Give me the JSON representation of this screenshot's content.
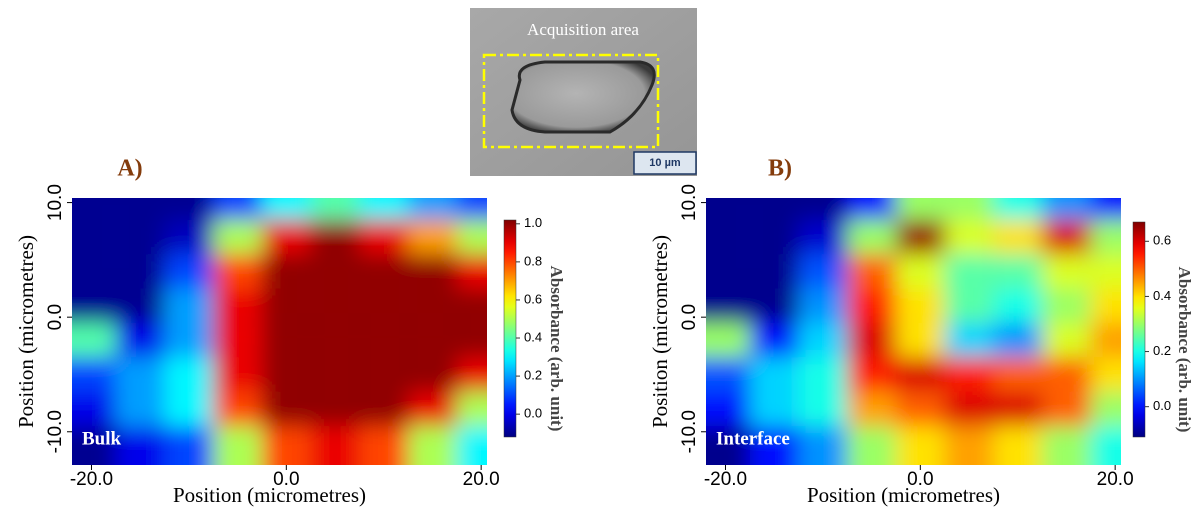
{
  "inset": {
    "label": "Acquisition area",
    "scale_bar": "10 µm"
  },
  "chart_data": [
    {
      "type": "heatmap",
      "panel": "A)",
      "annotation": "Bulk",
      "xlabel": "Position (micrometres)",
      "ylabel": "Position (micrometres)",
      "colorbar_label": "Absorbance (arb. unit)",
      "colormap": "jet",
      "x": [
        -20,
        -15,
        -10,
        -5,
        0,
        5,
        10,
        15,
        20
      ],
      "y": [
        10,
        7,
        4,
        1,
        -2,
        -5,
        -8,
        -11
      ],
      "z": [
        [
          -0.1,
          -0.1,
          -0.1,
          0.1,
          0.3,
          0.4,
          0.3,
          0.2,
          0.1
        ],
        [
          -0.1,
          -0.1,
          -0.05,
          0.5,
          0.9,
          1.0,
          0.9,
          0.7,
          0.5
        ],
        [
          -0.1,
          -0.1,
          0.1,
          0.8,
          1.0,
          1.0,
          1.0,
          1.0,
          0.9
        ],
        [
          -0.1,
          -0.1,
          0.2,
          0.9,
          1.0,
          1.0,
          1.0,
          1.0,
          1.0
        ],
        [
          0.4,
          0.0,
          0.2,
          0.9,
          1.0,
          1.0,
          1.0,
          1.0,
          1.0
        ],
        [
          0.1,
          0.2,
          0.3,
          0.9,
          1.0,
          1.0,
          1.0,
          1.0,
          0.9
        ],
        [
          0.0,
          0.2,
          0.3,
          0.8,
          1.0,
          1.0,
          1.0,
          0.9,
          0.5
        ],
        [
          -0.1,
          0.0,
          0.1,
          0.5,
          0.8,
          0.9,
          0.8,
          0.5,
          0.3
        ]
      ],
      "xlim": [
        -22,
        20.6
      ],
      "ylim": [
        -12.9,
        10.4
      ],
      "xticks": [
        {
          "value": -20,
          "label": "-20.0"
        },
        {
          "value": 0,
          "label": "0.0"
        },
        {
          "value": 20,
          "label": "20.0"
        }
      ],
      "yticks": [
        {
          "value": -10,
          "label": "-10.0"
        },
        {
          "value": 0,
          "label": "0.0"
        },
        {
          "value": 10,
          "label": "10.0"
        }
      ],
      "clim": [
        -0.12,
        1.02
      ],
      "cticks": [
        {
          "value": 0,
          "label": "0.0"
        },
        0.2,
        0.4,
        0.6,
        0.8,
        {
          "value": 1,
          "label": "1.0"
        }
      ]
    },
    {
      "type": "heatmap",
      "panel": "B)",
      "annotation": "Interface",
      "xlabel": "Position (micrometres)",
      "ylabel": "Position (micrometres)",
      "colorbar_label": "Absorbance (arb. unit)",
      "colormap": "jet",
      "x": [
        -20,
        -15,
        -10,
        -5,
        0,
        5,
        10,
        15,
        20
      ],
      "y": [
        10,
        7,
        4,
        1,
        -2,
        -5,
        -8,
        -11
      ],
      "z": [
        [
          -0.1,
          -0.1,
          -0.1,
          0.0,
          0.3,
          0.3,
          0.2,
          0.1,
          0.0
        ],
        [
          -0.1,
          -0.1,
          -0.05,
          0.3,
          0.65,
          0.35,
          0.4,
          0.6,
          0.3
        ],
        [
          -0.1,
          -0.1,
          0.05,
          0.5,
          0.35,
          0.25,
          0.25,
          0.35,
          0.35
        ],
        [
          -0.1,
          -0.1,
          0.1,
          0.55,
          0.4,
          0.25,
          0.2,
          0.3,
          0.4
        ],
        [
          0.3,
          0.0,
          0.15,
          0.6,
          0.4,
          0.15,
          0.1,
          0.35,
          0.45
        ],
        [
          0.05,
          0.15,
          0.2,
          0.55,
          0.6,
          0.55,
          0.5,
          0.5,
          0.4
        ],
        [
          0.0,
          0.15,
          0.2,
          0.45,
          0.5,
          0.6,
          0.6,
          0.5,
          0.3
        ],
        [
          -0.1,
          0.0,
          0.1,
          0.3,
          0.4,
          0.45,
          0.4,
          0.3,
          0.2
        ]
      ],
      "xlim": [
        -22,
        20.6
      ],
      "ylim": [
        -12.9,
        10.4
      ],
      "xticks": [
        {
          "value": -20,
          "label": "-20.0"
        },
        {
          "value": 0,
          "label": "0.0"
        },
        {
          "value": 20,
          "label": "20.0"
        }
      ],
      "yticks": [
        {
          "value": -10,
          "label": "-10.0"
        },
        {
          "value": 0,
          "label": "0.0"
        },
        {
          "value": 10,
          "label": "10.0"
        }
      ],
      "clim": [
        -0.11,
        0.67
      ],
      "cticks": [
        {
          "value": 0,
          "label": "0.0"
        },
        0.2,
        0.4,
        0.6
      ]
    }
  ]
}
